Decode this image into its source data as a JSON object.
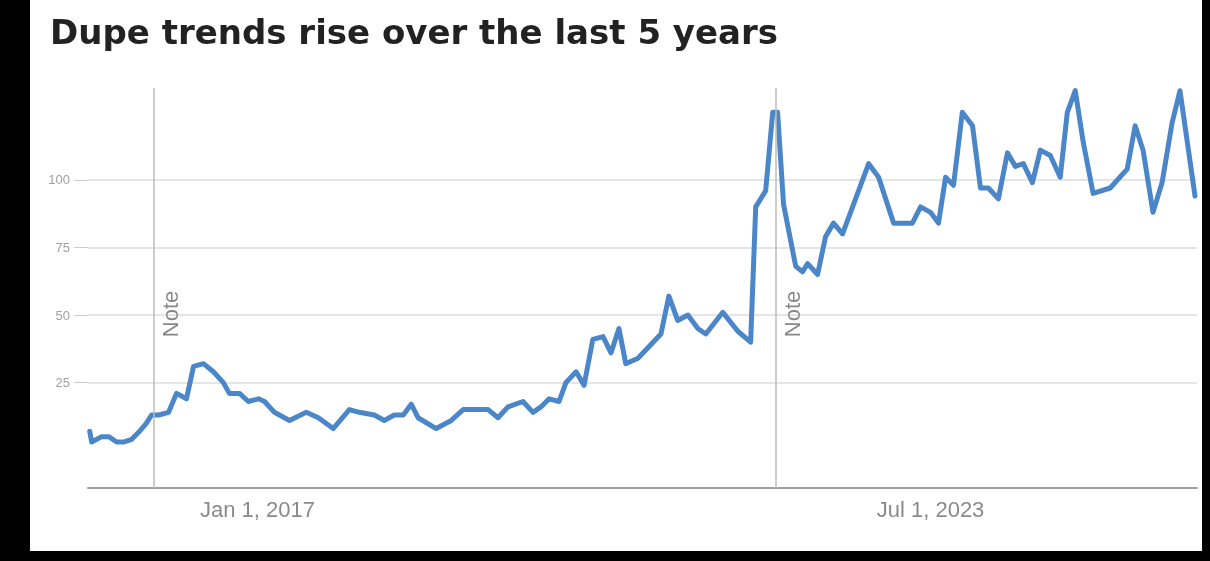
{
  "chart_data": {
    "type": "line",
    "title": "Dupe trends rise over the last 5 years",
    "x": [
      "2015-05-21",
      "2015-05-28",
      "2015-07-02",
      "2015-07-27",
      "2015-08-24",
      "2015-09-17",
      "2015-10-16",
      "2015-11-13",
      "2015-12-07",
      "2015-12-25",
      "2016-01-19",
      "2016-02-23",
      "2016-03-22",
      "2016-04-26",
      "2016-05-21",
      "2016-06-25",
      "2016-07-30",
      "2016-09-03",
      "2016-09-24",
      "2016-10-30",
      "2016-11-30",
      "2017-01-05",
      "2017-01-26",
      "2017-03-02",
      "2017-04-24",
      "2017-06-22",
      "2017-08-04",
      "2017-09-25",
      "2017-11-21",
      "2017-12-26",
      "2018-02-17",
      "2018-03-24",
      "2018-04-28",
      "2018-05-30",
      "2018-06-27",
      "2018-07-21",
      "2018-09-23",
      "2018-11-15",
      "2018-12-27",
      "2019-03-25",
      "2019-04-29",
      "2019-06-03",
      "2019-07-26",
      "2019-08-30",
      "2019-09-27",
      "2019-10-26",
      "2019-11-30",
      "2019-12-24",
      "2020-01-29",
      "2020-02-26",
      "2020-03-28",
      "2020-05-03",
      "2020-05-31",
      "2020-06-28",
      "2020-07-22",
      "2020-09-03",
      "2020-11-23",
      "2020-12-21",
      "2021-01-21",
      "2021-02-26",
      "2021-04-02",
      "2021-04-30",
      "2021-06-29",
      "2021-08-21",
      "2021-10-05",
      "2021-10-23",
      "2021-11-27",
      "2021-12-22",
      "2022-01-08",
      "2022-01-29",
      "2022-03-13",
      "2022-04-06",
      "2022-04-24",
      "2022-05-29",
      "2022-06-26",
      "2022-07-24",
      "2022-08-25",
      "2022-11-25",
      "2022-12-30",
      "2023-02-21",
      "2023-04-28",
      "2023-05-27",
      "2023-07-01",
      "2023-07-29",
      "2023-08-23",
      "2023-09-20",
      "2023-10-21",
      "2023-11-26",
      "2023-12-24",
      "2024-01-21",
      "2024-02-25",
      "2024-03-28",
      "2024-04-25",
      "2024-05-23",
      "2024-06-24",
      "2024-07-22",
      "2024-08-26",
      "2024-09-30",
      "2024-10-25",
      "2024-11-22",
      "2024-12-20",
      "2025-01-24",
      "2025-03-25",
      "2025-05-24",
      "2025-06-21",
      "2025-07-19",
      "2025-08-23",
      "2025-09-24",
      "2025-10-29",
      "2025-11-26",
      "2026-01-18"
    ],
    "series": [
      {
        "color": "#4a86c8",
        "values": [
          7,
          3,
          5,
          5,
          3,
          3,
          4,
          7,
          10,
          13,
          13,
          14,
          21,
          19,
          31,
          32,
          29,
          25,
          21,
          21,
          18,
          19,
          18,
          14,
          11,
          14,
          12,
          8,
          15,
          14,
          13,
          11,
          13,
          13,
          17,
          12,
          8,
          11,
          15,
          15,
          12,
          16,
          18,
          14,
          16,
          19,
          18,
          25,
          29,
          24,
          41,
          42,
          36,
          45,
          32,
          34,
          43,
          57,
          48,
          50,
          45,
          43,
          51,
          44,
          40,
          90,
          96,
          125,
          125,
          91,
          68,
          66,
          69,
          65,
          79,
          84,
          80,
          106,
          101,
          84,
          84,
          90,
          88,
          84,
          101,
          98,
          125,
          120,
          97,
          97,
          93,
          110,
          105,
          106,
          99,
          111,
          109,
          101,
          125,
          133,
          114,
          95,
          97,
          104,
          120,
          111,
          88,
          99,
          121,
          133,
          94
        ]
      }
    ],
    "xlim": [
      "2015-05-15",
      "2026-01-25"
    ],
    "xticks": [
      {
        "value": "2017-01-01",
        "label": "Jan 1, 2017"
      },
      {
        "value": "2023-07-01",
        "label": "Jul 1, 2023"
      }
    ],
    "ylim": [
      -14,
      134
    ],
    "yticks": [
      25,
      50,
      75,
      100
    ],
    "grid": "y",
    "marker": "none",
    "line_style": "solid",
    "ref_lines": [
      {
        "axis": "x",
        "value": "2016-01-01",
        "label": "Note"
      },
      {
        "axis": "x",
        "value": "2022-01-01",
        "label": "Note"
      }
    ]
  }
}
